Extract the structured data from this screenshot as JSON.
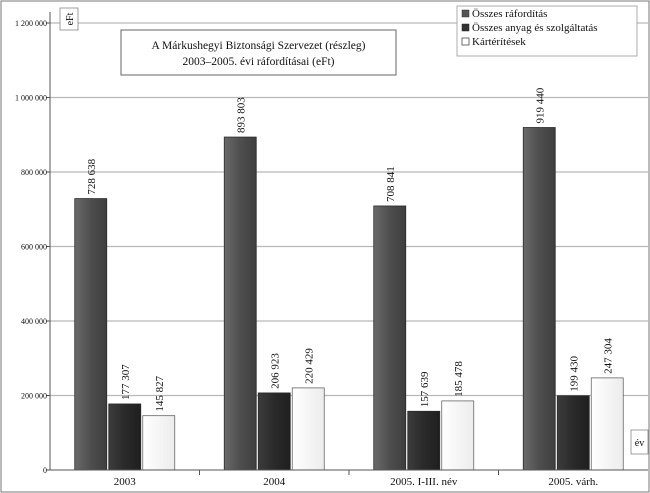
{
  "chart_data": {
    "type": "bar",
    "title_lines": [
      "A Márkushegyi Biztonsági Szervezet (részleg)",
      "2003–2005. évi ráfordításai (eFt)"
    ],
    "ylabel": "eFt",
    "xlabel": "év",
    "ylim": [
      0,
      1200000
    ],
    "yticks": [
      0,
      200000,
      400000,
      600000,
      800000,
      1000000,
      1200000
    ],
    "ytick_labels": [
      "0",
      "200 000",
      "400 000",
      "600 000",
      "800 000",
      "1 000 000",
      "1 200 000"
    ],
    "categories": [
      "2003",
      "2004",
      "2005. I-III. név",
      "2005. várh."
    ],
    "series": [
      {
        "name": "Összes ráfordítás",
        "color": "#555555",
        "values": [
          728638,
          893803,
          708841,
          919440
        ],
        "labels": [
          "728 638",
          "893 803",
          "708 841",
          "919 440"
        ]
      },
      {
        "name": "Összes anyag és szolgáltatás",
        "color": "#333333",
        "values": [
          177307,
          206923,
          157639,
          199430
        ],
        "labels": [
          "177 307",
          "206 923",
          "157 639",
          "199 430"
        ]
      },
      {
        "name": "Kártérítések",
        "color": "#ffffff",
        "values": [
          145827,
          220429,
          185478,
          247304
        ],
        "labels": [
          "145 827",
          "220 429",
          "185 478",
          "247 304"
        ]
      }
    ],
    "grid": true,
    "legend_position": "top-right"
  }
}
